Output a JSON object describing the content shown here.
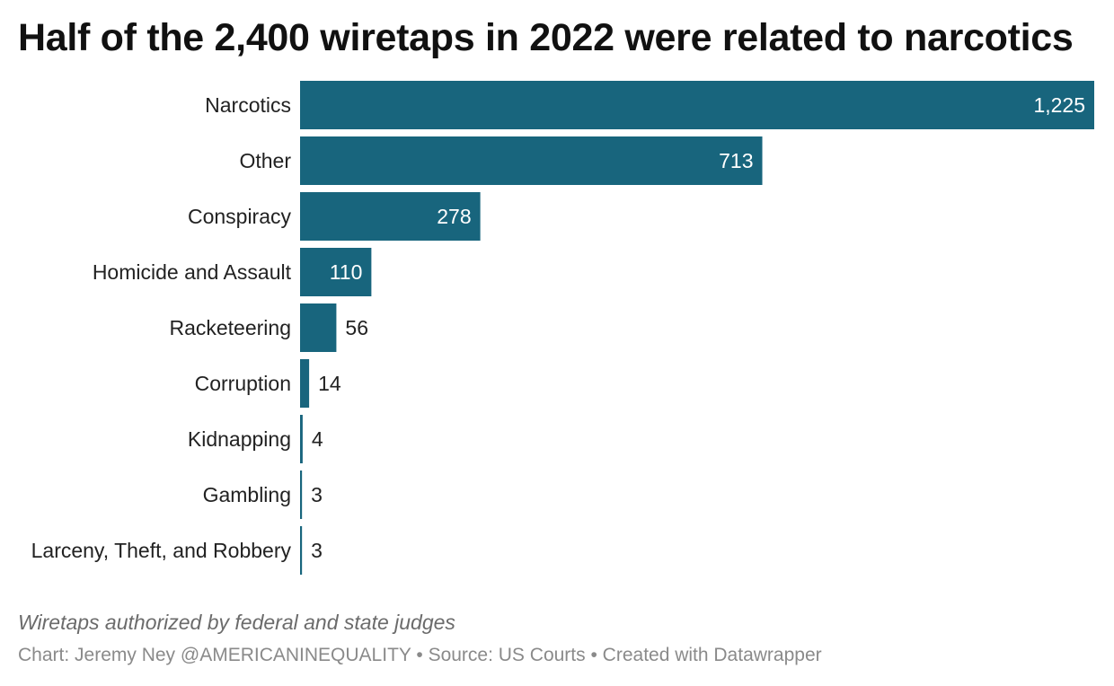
{
  "chart_data": {
    "type": "bar",
    "orientation": "horizontal",
    "title": "Half of the 2,400 wiretaps in 2022 were related to narcotics",
    "notes": "Wiretaps authorized by federal and state judges",
    "categories": [
      "Narcotics",
      "Other",
      "Conspiracy",
      "Homicide and Assault",
      "Racketeering",
      "Corruption",
      "Kidnapping",
      "Gambling",
      "Larceny, Theft, and Robbery"
    ],
    "values": [
      1225,
      713,
      278,
      110,
      56,
      14,
      4,
      3,
      3
    ],
    "value_labels": [
      "1,225",
      "713",
      "278",
      "110",
      "56",
      "14",
      "4",
      "3",
      "3"
    ],
    "xlim": [
      0,
      1225
    ],
    "grid": false,
    "legend": "none",
    "bar_color": "#18657d"
  },
  "footer": {
    "chart_credit": "Chart: Jeremy Ney @AMERICANINEQUALITY",
    "separator": " • ",
    "source": "Source: US Courts",
    "created_with": "Created with Datawrapper"
  }
}
